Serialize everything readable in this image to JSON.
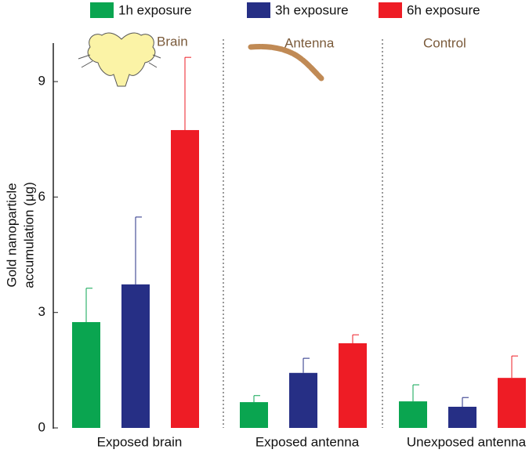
{
  "chart_data": {
    "type": "bar",
    "y_label": [
      "Gold nanoparticle",
      "accumulation (μg)"
    ],
    "categories": [
      "Exposed brain",
      "Exposed antenna",
      "Unexposed antenna"
    ],
    "annotations": [
      "Brain",
      "Antenna",
      "Control"
    ],
    "series": [
      {
        "name": "1h exposure",
        "color": "#0aa550",
        "values": [
          2.75,
          0.67,
          0.69
        ],
        "errors": [
          0.88,
          0.17,
          0.43
        ]
      },
      {
        "name": "3h exposure",
        "color": "#262f85",
        "values": [
          3.73,
          1.43,
          0.55
        ],
        "errors": [
          1.75,
          0.38,
          0.24
        ]
      },
      {
        "name": "6h exposure",
        "color": "#ee1c25",
        "values": [
          7.74,
          2.2,
          1.3
        ],
        "errors": [
          1.89,
          0.22,
          0.57
        ]
      }
    ],
    "ylim": [
      0,
      10
    ],
    "yticks": [
      0,
      3,
      6,
      9
    ]
  }
}
